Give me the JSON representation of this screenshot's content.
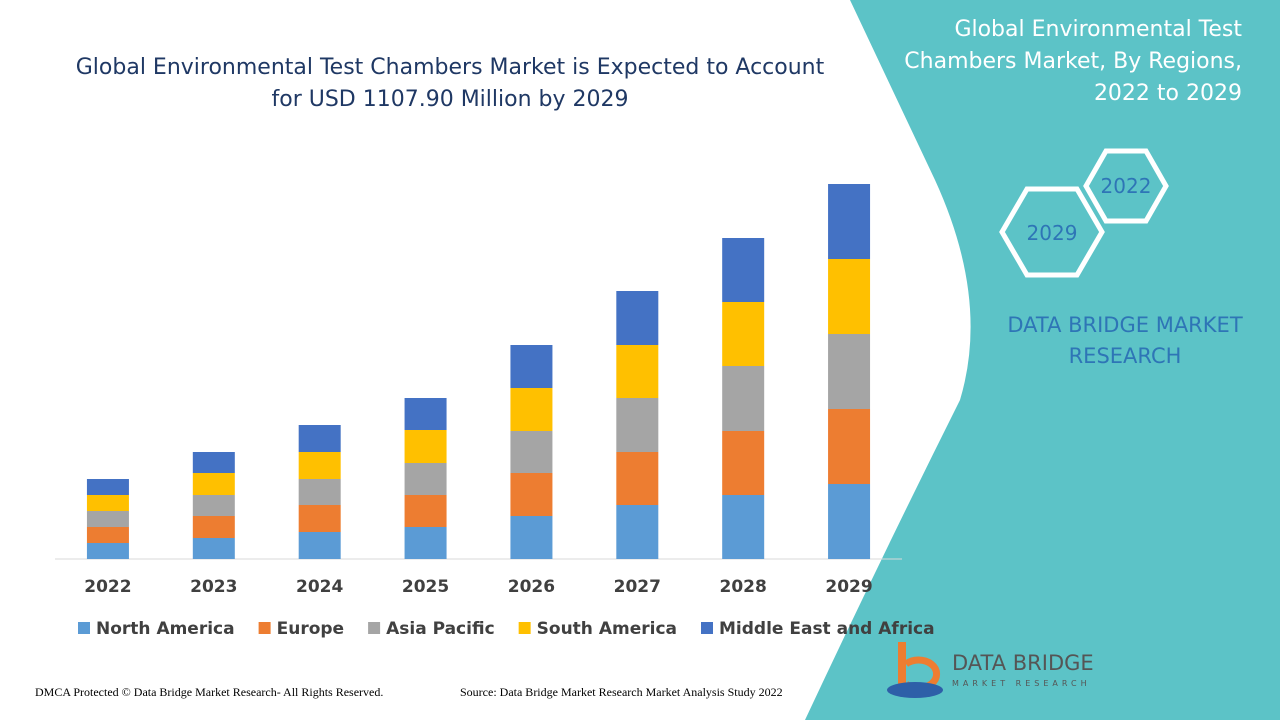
{
  "chart_data": {
    "type": "stacked-bar",
    "title": "Global Environmental Test Chambers Market is Expected to Account for USD 1107.90 Million by 2029",
    "categories": [
      "2022",
      "2023",
      "2024",
      "2025",
      "2026",
      "2027",
      "2028",
      "2029"
    ],
    "series": [
      {
        "name": "North America",
        "color": "#5B9BD5",
        "values": [
          16,
          21,
          27,
          32,
          43,
          54,
          64,
          75
        ]
      },
      {
        "name": "Europe",
        "color": "#ED7D31",
        "values": [
          16,
          22,
          27,
          32,
          43,
          53,
          64,
          75
        ]
      },
      {
        "name": "Asia Pacific",
        "color": "#A5A5A5",
        "values": [
          16,
          21,
          26,
          32,
          42,
          54,
          65,
          75
        ]
      },
      {
        "name": "South America",
        "color": "#FFC000",
        "values": [
          16,
          22,
          27,
          33,
          43,
          53,
          64,
          75
        ]
      },
      {
        "name": "Middle East and Africa",
        "color": "#4472C4",
        "values": [
          16,
          21,
          27,
          32,
          43,
          54,
          64,
          75
        ]
      }
    ]
  },
  "panel": {
    "title": "Global Environmental Test Chambers Market, By Regions, 2022 to 2029",
    "hex_labels": [
      "2022",
      "2029"
    ],
    "brand": "DATA BRIDGE MARKET RESEARCH"
  },
  "logo": {
    "name": "DATA BRIDGE",
    "tagline": "MARKET RESEARCH"
  },
  "footer": {
    "copyright": "DMCA Protected © Data Bridge Market Research- All Rights Reserved.",
    "source": "Source: Data Bridge Market Research Market Analysis Study 2022"
  }
}
